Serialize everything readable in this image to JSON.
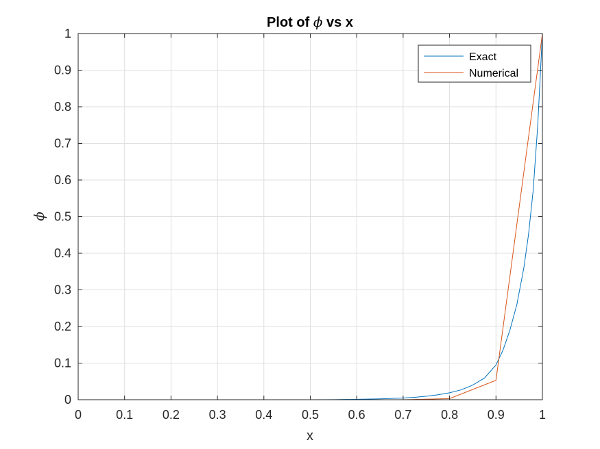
{
  "chart_data": {
    "type": "line",
    "title": {
      "prefix": "Plot of ",
      "symbol": "ϕ",
      "suffix": " vs x"
    },
    "xlabel": "x",
    "ylabel": "ϕ",
    "xlim": [
      0,
      1
    ],
    "ylim": [
      0,
      1
    ],
    "xticks": [
      0,
      0.1,
      0.2,
      0.3,
      0.4,
      0.5,
      0.6,
      0.7,
      0.8,
      0.9,
      1
    ],
    "xtick_labels": [
      "0",
      "0.1",
      "0.2",
      "0.3",
      "0.4",
      "0.5",
      "0.6",
      "0.7",
      "0.8",
      "0.9",
      "1"
    ],
    "yticks": [
      0,
      0.1,
      0.2,
      0.3,
      0.4,
      0.5,
      0.6,
      0.7,
      0.8,
      0.9,
      1
    ],
    "ytick_labels": [
      "0",
      "0.1",
      "0.2",
      "0.3",
      "0.4",
      "0.5",
      "0.6",
      "0.7",
      "0.8",
      "0.9",
      "1"
    ],
    "grid": true,
    "legend_position": "top-right",
    "series": [
      {
        "name": "Exact",
        "color": "#0072BD",
        "x": [
          0,
          0.1,
          0.2,
          0.3,
          0.4,
          0.5,
          0.55,
          0.6,
          0.65,
          0.7,
          0.725,
          0.75,
          0.775,
          0.8,
          0.825,
          0.85,
          0.875,
          0.9,
          0.915,
          0.93,
          0.945,
          0.96,
          0.97,
          0.98,
          0.99,
          1.0
        ],
        "y": [
          0,
          0,
          0,
          0,
          0,
          0,
          0.0003,
          0.0011,
          0.0024,
          0.0047,
          0.0066,
          0.0095,
          0.0136,
          0.019,
          0.027,
          0.04,
          0.059,
          0.095,
          0.135,
          0.19,
          0.26,
          0.36,
          0.45,
          0.57,
          0.75,
          1.0
        ]
      },
      {
        "name": "Numerical",
        "color": "#D95319",
        "x": [
          0,
          0.1,
          0.2,
          0.3,
          0.4,
          0.5,
          0.6,
          0.7,
          0.8,
          0.9,
          1.0
        ],
        "y": [
          0,
          0,
          0,
          0,
          0,
          0,
          0,
          0,
          0.003,
          0.053,
          1.0
        ]
      }
    ]
  }
}
